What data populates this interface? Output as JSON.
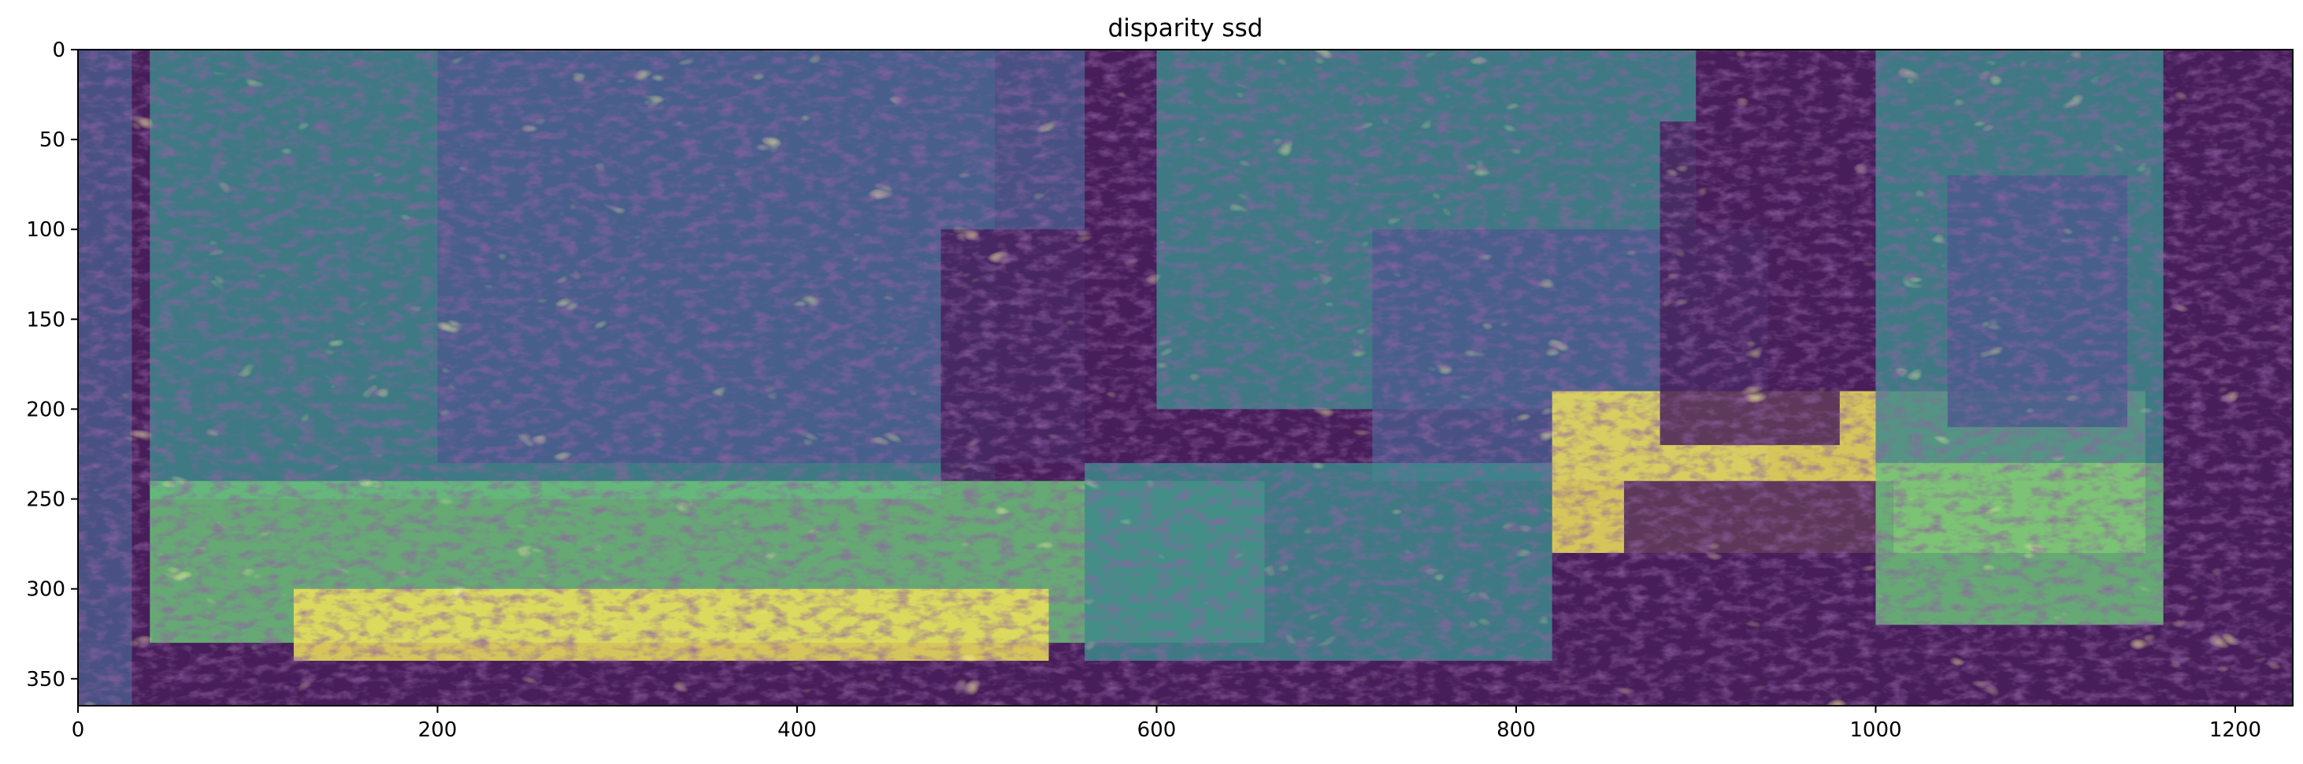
{
  "chart_data": {
    "type": "heatmap",
    "title": "disparity ssd",
    "xlabel": "",
    "ylabel": "",
    "colormap": "viridis",
    "x_range": [
      0,
      1232
    ],
    "y_range": [
      0,
      365
    ],
    "y_inverted": true,
    "x_ticks": [
      "0",
      "200",
      "400",
      "600",
      "800",
      "1000",
      "1200"
    ],
    "x_tick_values": [
      0,
      200,
      400,
      600,
      800,
      1000,
      1200
    ],
    "y_ticks": [
      "0",
      "50",
      "100",
      "150",
      "200",
      "250",
      "300",
      "350"
    ],
    "y_tick_values": [
      0,
      50,
      100,
      150,
      200,
      250,
      300,
      350
    ],
    "grid": false,
    "colors": {
      "low": "#481f5b",
      "mid_low": "#4a5a8c",
      "mid": "#3e8a8c",
      "mid_high": "#6cc27a",
      "high": "#f0e35a"
    }
  }
}
